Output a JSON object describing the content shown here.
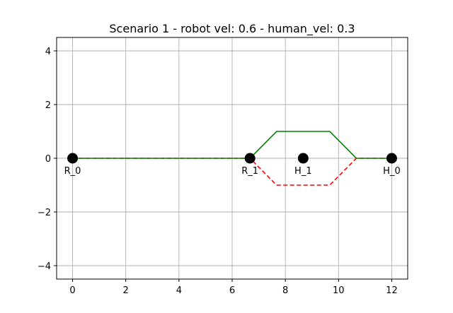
{
  "chart_data": {
    "type": "line",
    "title": "Scenario 1 - robot vel: 0.6 - human_vel: 0.3",
    "xlabel": "",
    "ylabel": "",
    "xlim": [
      -0.6,
      12.6
    ],
    "ylim": [
      -4.5,
      4.5
    ],
    "x_ticks": [
      0,
      2,
      4,
      6,
      8,
      10,
      12
    ],
    "y_ticks": [
      -4,
      -2,
      0,
      2,
      4
    ],
    "grid": true,
    "series": [
      {
        "style": "dashed",
        "color": "#ff0000",
        "x": [
          0,
          6.67,
          7.67,
          9.67,
          10.67,
          12
        ],
        "y": [
          0,
          0,
          -1,
          -1,
          0,
          0
        ]
      },
      {
        "style": "solid",
        "color": "#008000",
        "x": [
          0,
          6.67,
          7.67,
          9.67,
          10.67,
          12
        ],
        "y": [
          0,
          0,
          1,
          1,
          0,
          0
        ]
      }
    ],
    "points": [
      {
        "label": "R_0",
        "x": 0,
        "y": 0
      },
      {
        "label": "R_1",
        "x": 6.67,
        "y": 0
      },
      {
        "label": "H_1",
        "x": 8.67,
        "y": 0
      },
      {
        "label": "H_0",
        "x": 12,
        "y": 0
      }
    ],
    "point_color": "#000000"
  }
}
